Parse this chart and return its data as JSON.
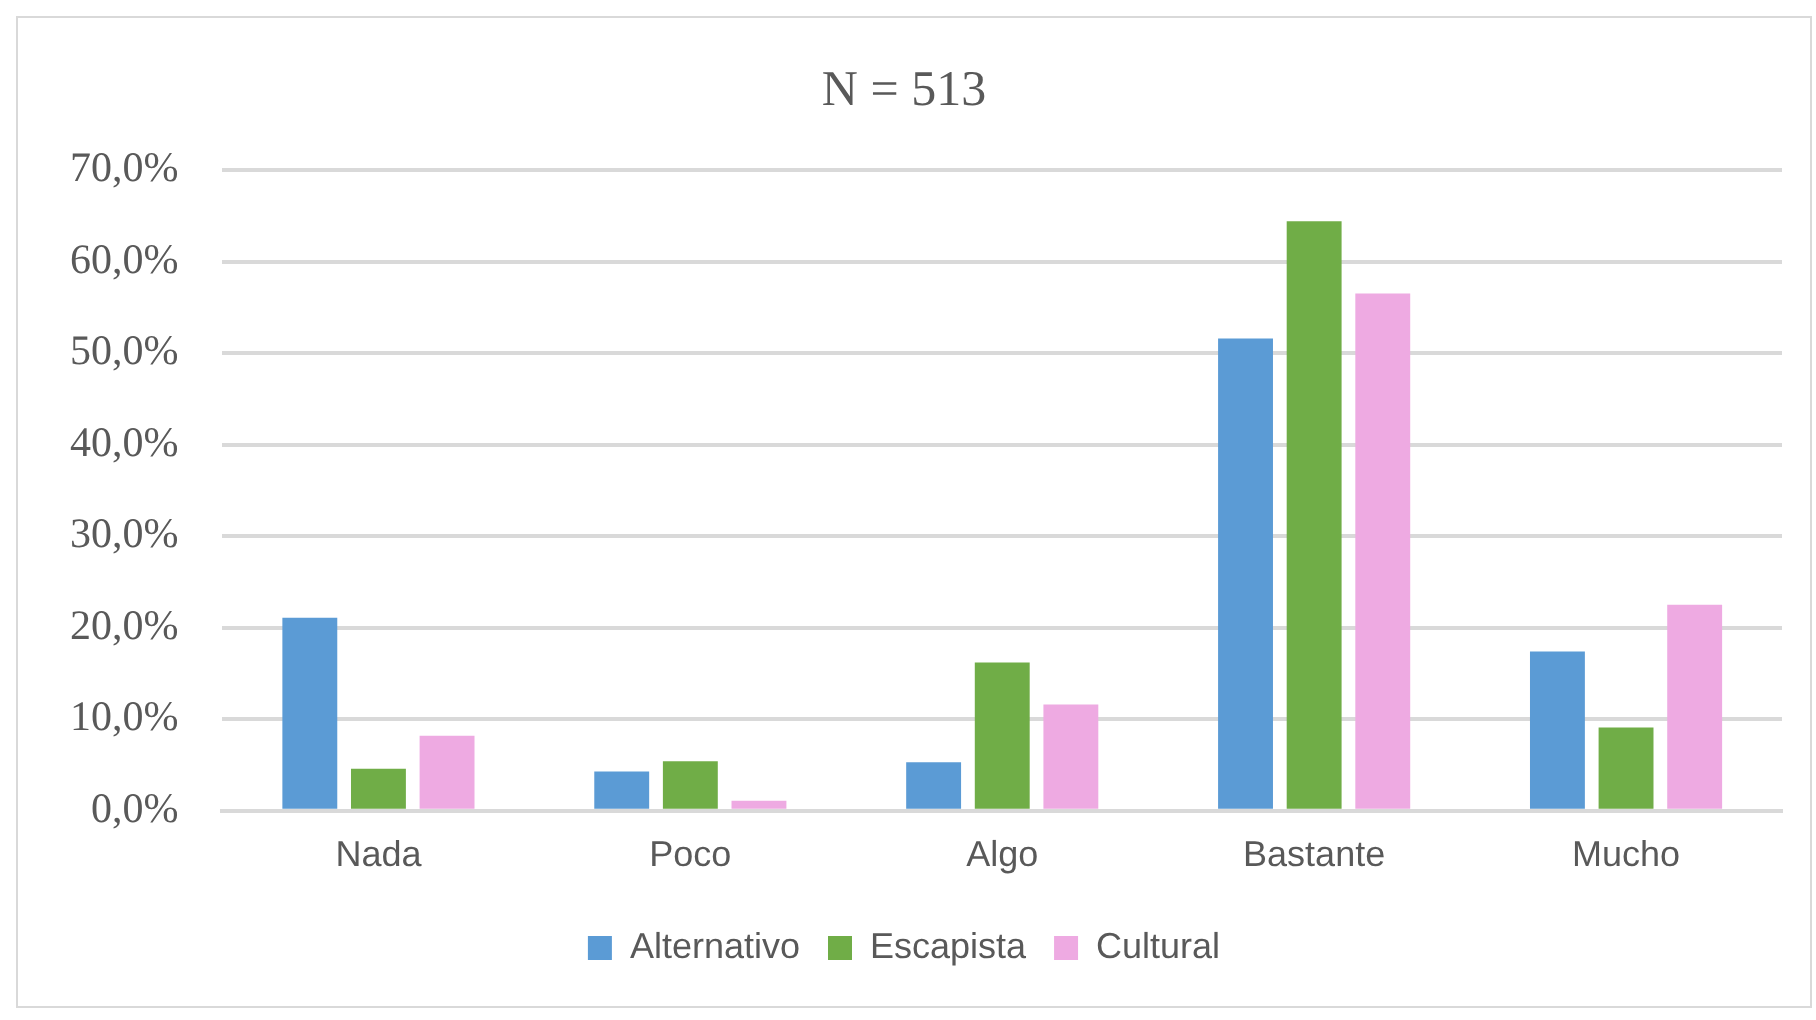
{
  "chart_data": {
    "type": "bar",
    "title": "N = 513",
    "categories": [
      "Nada",
      "Poco",
      "Algo",
      "Bastante",
      "Mucho"
    ],
    "series": [
      {
        "name": "Alternativo",
        "color": "#5b9bd5",
        "values": [
          21.1,
          4.3,
          5.3,
          51.6,
          17.4
        ]
      },
      {
        "name": "Escapista",
        "color": "#70ad47",
        "values": [
          4.6,
          5.4,
          16.2,
          64.4,
          9.1
        ]
      },
      {
        "name": "Cultural",
        "color": "#eeaae2",
        "values": [
          8.2,
          1.1,
          11.6,
          56.5,
          22.5
        ]
      }
    ],
    "ylim": [
      0,
      70
    ],
    "yticks": [
      {
        "value": 0,
        "label": "0,0%"
      },
      {
        "value": 10,
        "label": "10,0%"
      },
      {
        "value": 20,
        "label": "20,0%"
      },
      {
        "value": 30,
        "label": "30,0%"
      },
      {
        "value": 40,
        "label": "40,0%"
      },
      {
        "value": 50,
        "label": "50,0%"
      },
      {
        "value": 60,
        "label": "60,0%"
      },
      {
        "value": 70,
        "label": "70,0%"
      }
    ],
    "grid": "y",
    "legend": "bottom"
  }
}
